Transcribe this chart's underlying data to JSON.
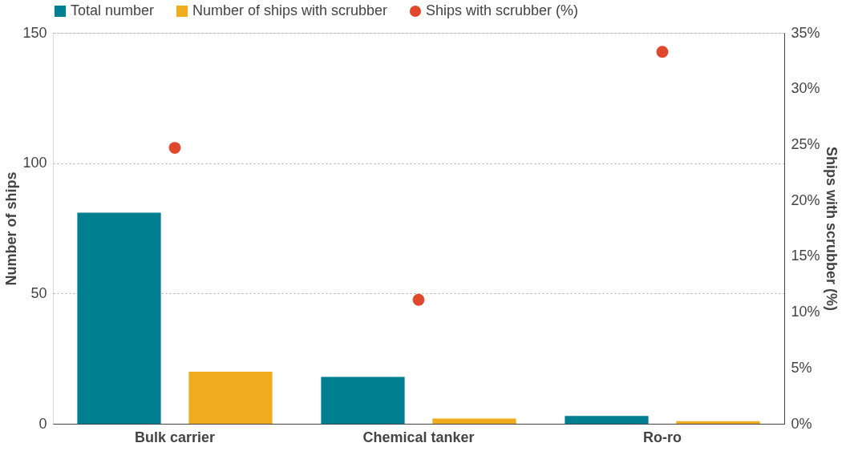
{
  "chart_data": {
    "type": "bar",
    "categories": [
      "Bulk carrier",
      "Chemical tanker",
      "Ro-ro"
    ],
    "ylabel": "Number of ships",
    "y2label": "Ships with scrubber (%)",
    "ylim": [
      0,
      150
    ],
    "yticks": [
      0,
      50,
      100,
      150
    ],
    "y2lim": [
      0,
      35
    ],
    "y2ticks": [
      {
        "value": 0,
        "label": "0%"
      },
      {
        "value": 5,
        "label": "5%"
      },
      {
        "value": 10,
        "label": "10%"
      },
      {
        "value": 15,
        "label": "15%"
      },
      {
        "value": 20,
        "label": "20%"
      },
      {
        "value": 25,
        "label": "25%"
      },
      {
        "value": 30,
        "label": "30%"
      },
      {
        "value": 35,
        "label": "35%"
      }
    ],
    "series": [
      {
        "name": "Total number",
        "color": "#007f91",
        "values": [
          81,
          18,
          3
        ]
      },
      {
        "name": "Number of ships with scrubber",
        "color": "#f0ac1f",
        "values": [
          20,
          2,
          1
        ]
      },
      {
        "name": "Ships with scrubber (%)",
        "color": "#e0472b",
        "type": "scatter",
        "axis": "y2",
        "values": [
          24.7,
          11.1,
          33.3
        ]
      }
    ],
    "grid": "y",
    "legend": "top",
    "marker": "circle"
  }
}
